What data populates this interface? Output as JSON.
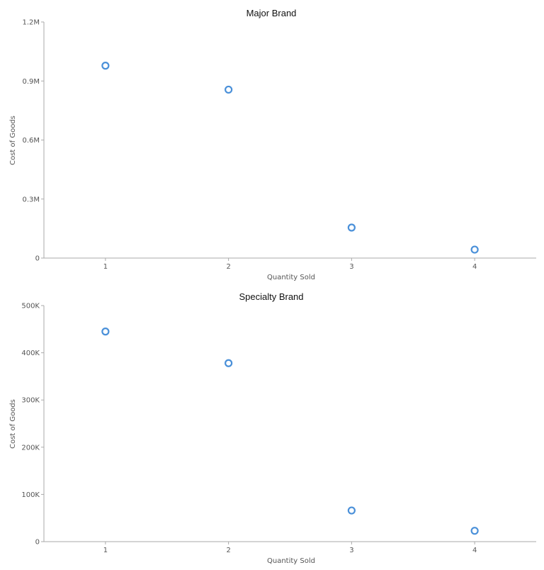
{
  "chart_data": [
    {
      "type": "scatter",
      "title": "Major Brand",
      "xlabel": "Quantity Sold",
      "ylabel": "Cost of Goods",
      "xlim": [
        0.5,
        4.5
      ],
      "ylim": [
        0,
        1200000
      ],
      "x_ticks": [
        1,
        2,
        3,
        4
      ],
      "x_tick_labels": [
        "1",
        "2",
        "3",
        "4"
      ],
      "y_ticks": [
        0,
        300000,
        600000,
        900000,
        1200000
      ],
      "y_tick_labels": [
        "0",
        "0.3M",
        "0.6M",
        "0.9M",
        "1.2M"
      ],
      "grid": false,
      "marker_color": "#4a90d9",
      "points": [
        {
          "x": 1,
          "y": 978000
        },
        {
          "x": 2,
          "y": 856000
        },
        {
          "x": 3,
          "y": 155000
        },
        {
          "x": 4,
          "y": 43000
        }
      ]
    },
    {
      "type": "scatter",
      "title": "Specialty Brand",
      "xlabel": "Quantity Sold",
      "ylabel": "Cost of Goods",
      "xlim": [
        0.5,
        4.5
      ],
      "ylim": [
        0,
        500000
      ],
      "x_ticks": [
        1,
        2,
        3,
        4
      ],
      "x_tick_labels": [
        "1",
        "2",
        "3",
        "4"
      ],
      "y_ticks": [
        0,
        100000,
        200000,
        300000,
        400000,
        500000
      ],
      "y_tick_labels": [
        "0",
        "100K",
        "200K",
        "300K",
        "400K",
        "500K"
      ],
      "grid": false,
      "marker_color": "#4a90d9",
      "points": [
        {
          "x": 1,
          "y": 445000
        },
        {
          "x": 2,
          "y": 378000
        },
        {
          "x": 3,
          "y": 66000
        },
        {
          "x": 4,
          "y": 23000
        }
      ]
    }
  ]
}
